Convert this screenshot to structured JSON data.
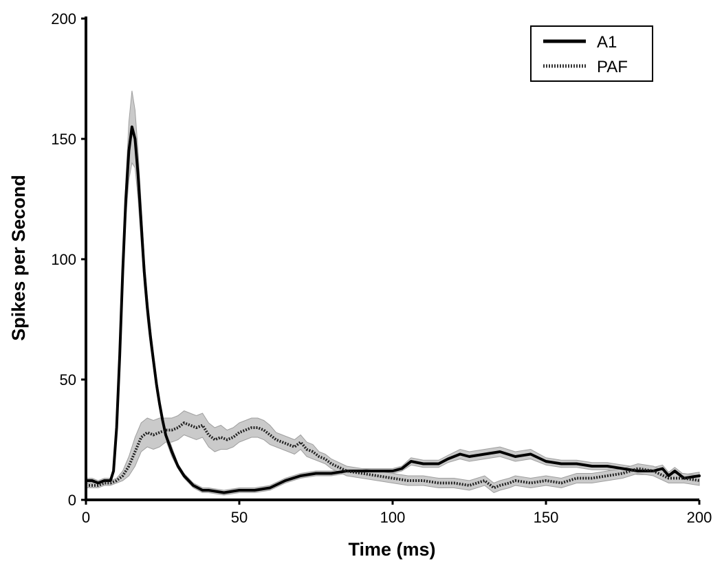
{
  "chart_data": {
    "type": "line",
    "title": "",
    "xlabel": "Time (ms)",
    "ylabel": "Spikes per Second",
    "xlim": [
      0,
      200
    ],
    "ylim": [
      0,
      200
    ],
    "xticks": [
      0,
      50,
      100,
      150,
      200
    ],
    "yticks": [
      0,
      50,
      100,
      150,
      200
    ],
    "grid": false,
    "legend_position": "top-right",
    "series": [
      {
        "name": "A1",
        "style": "solid",
        "color": "#000000",
        "band_color": "#c8c8c8",
        "x": [
          0,
          2,
          4,
          6,
          8,
          9,
          10,
          11,
          12,
          13,
          14,
          15,
          16,
          17,
          18,
          19,
          20,
          21,
          22,
          23,
          24,
          25,
          26,
          28,
          30,
          32,
          35,
          38,
          40,
          45,
          50,
          55,
          60,
          65,
          70,
          75,
          80,
          85,
          90,
          95,
          100,
          103,
          106,
          110,
          115,
          118,
          122,
          125,
          130,
          135,
          140,
          145,
          150,
          155,
          160,
          165,
          170,
          175,
          180,
          185,
          188,
          190,
          192,
          195,
          200
        ],
        "y": [
          8,
          8,
          7,
          8,
          8,
          12,
          30,
          60,
          95,
          125,
          145,
          155,
          150,
          135,
          115,
          95,
          80,
          68,
          58,
          48,
          40,
          33,
          27,
          20,
          14,
          10,
          6,
          4,
          4,
          3,
          4,
          4,
          5,
          8,
          10,
          11,
          11,
          12,
          12,
          12,
          12,
          13,
          16,
          15,
          15,
          17,
          19,
          18,
          19,
          20,
          18,
          19,
          16,
          15,
          15,
          14,
          14,
          13,
          12,
          12,
          13,
          10,
          12,
          9,
          10
        ],
        "band": [
          1,
          1,
          1,
          1,
          1,
          1,
          2,
          3,
          5,
          8,
          12,
          15,
          12,
          10,
          8,
          6,
          5,
          4,
          3,
          3,
          2,
          2,
          2,
          2,
          1,
          1,
          1,
          1,
          1,
          1,
          1,
          1,
          1,
          1,
          1,
          1,
          1,
          1,
          1,
          1,
          1,
          1,
          1.5,
          1.5,
          1.5,
          1.5,
          2,
          2,
          2,
          2,
          2,
          2,
          1.5,
          1.5,
          1.5,
          1.5,
          1.5,
          1.5,
          1.5,
          1.5,
          1.5,
          1.5,
          1.5,
          1.5,
          1.5
        ]
      },
      {
        "name": "PAF",
        "style": "dotted",
        "color": "#222222",
        "band_color": "#c8c8c8",
        "x": [
          0,
          2,
          4,
          6,
          8,
          10,
          12,
          14,
          16,
          18,
          20,
          22,
          24,
          26,
          28,
          30,
          32,
          34,
          36,
          38,
          40,
          42,
          44,
          46,
          48,
          50,
          52,
          54,
          56,
          58,
          60,
          62,
          64,
          66,
          68,
          70,
          72,
          74,
          76,
          78,
          80,
          85,
          90,
          95,
          100,
          105,
          110,
          115,
          120,
          125,
          130,
          133,
          135,
          138,
          140,
          145,
          150,
          155,
          160,
          165,
          170,
          175,
          180,
          185,
          190,
          195,
          200
        ],
        "y": [
          6,
          6,
          6,
          7,
          7,
          8,
          10,
          14,
          20,
          26,
          28,
          27,
          28,
          29,
          29,
          30,
          32,
          31,
          30,
          31,
          27,
          25,
          26,
          25,
          26,
          28,
          29,
          30,
          30,
          29,
          27,
          25,
          24,
          23,
          22,
          24,
          21,
          20,
          18,
          17,
          15,
          12,
          11,
          10,
          9,
          8,
          8,
          7,
          7,
          6,
          8,
          5,
          6,
          7,
          8,
          7,
          8,
          7,
          9,
          9,
          10,
          11,
          13,
          12,
          9,
          9,
          8
        ],
        "band": [
          1,
          1,
          1,
          1,
          1,
          1,
          2,
          4,
          6,
          6,
          6,
          6,
          6,
          5,
          5,
          5,
          5,
          5,
          5,
          5,
          5,
          5,
          5,
          4,
          4,
          4,
          4,
          4,
          4,
          4,
          4,
          3,
          3,
          3,
          3,
          3,
          3,
          3,
          2,
          2,
          2,
          2,
          2,
          2,
          2,
          2,
          2,
          2,
          2,
          2,
          2,
          2,
          2,
          2,
          2,
          2,
          2,
          2,
          2,
          2,
          2,
          2,
          2,
          2,
          2,
          2,
          2
        ]
      }
    ]
  }
}
